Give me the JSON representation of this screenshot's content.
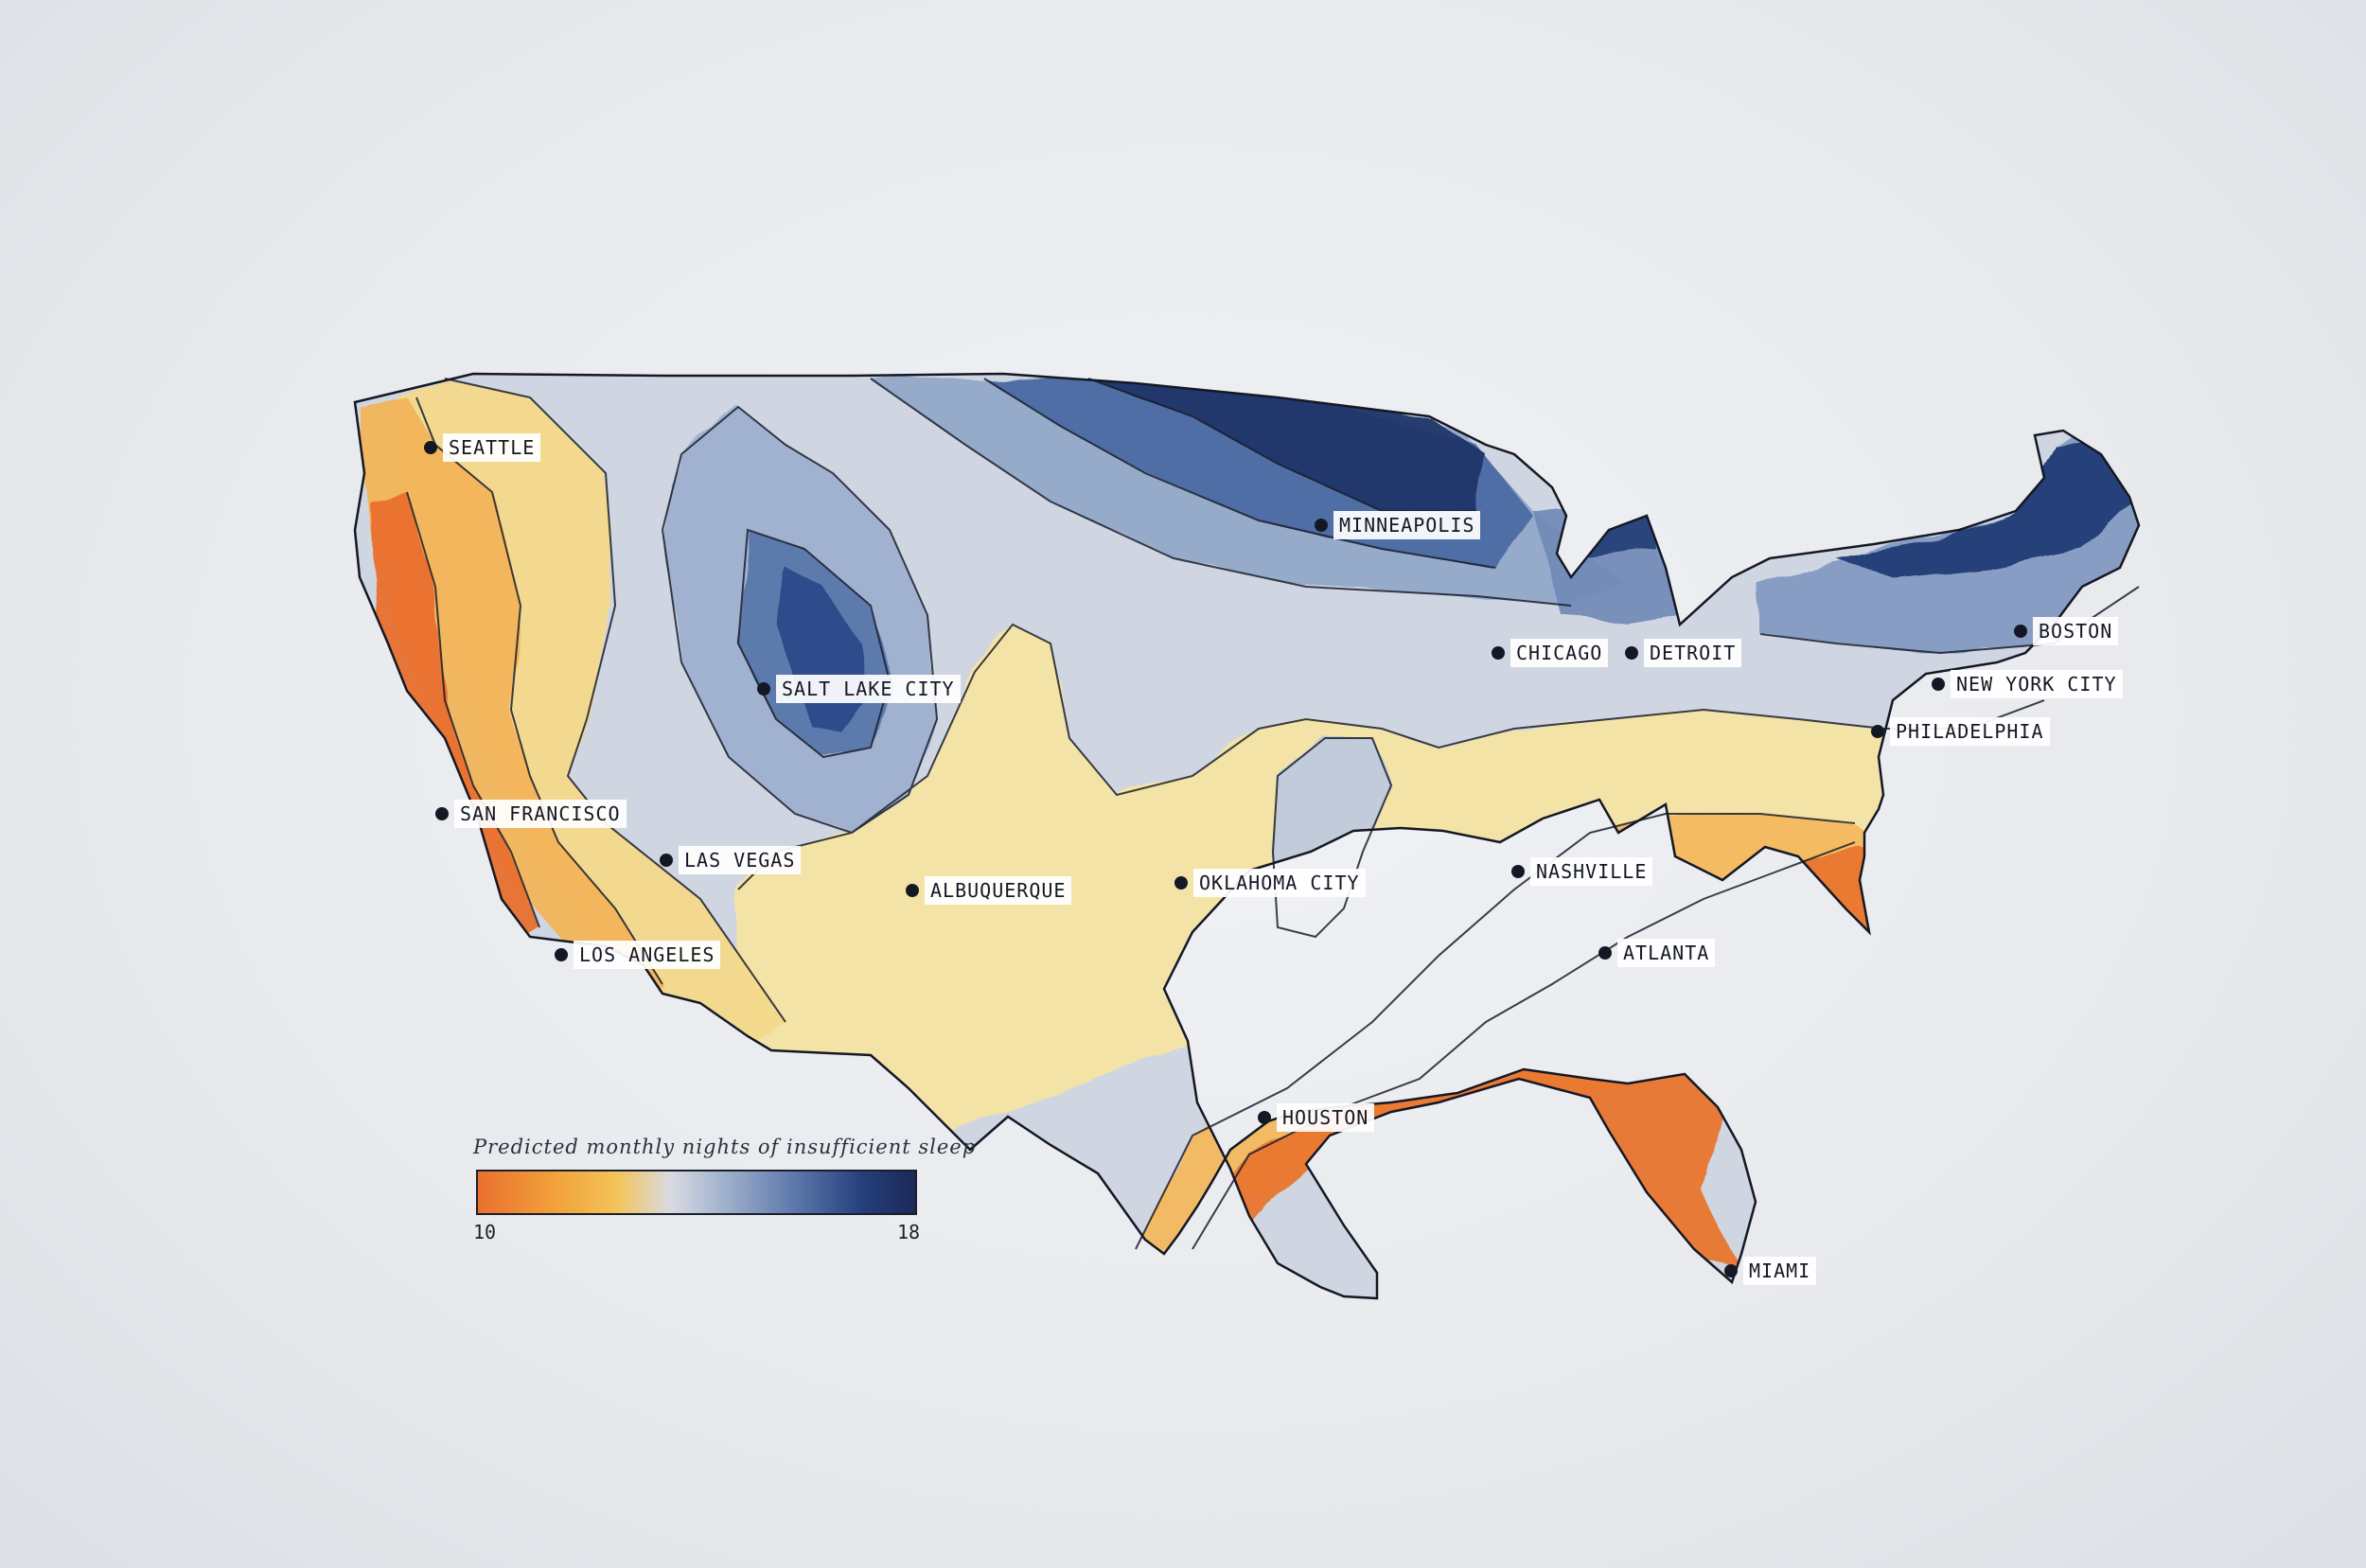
{
  "legend": {
    "title": "Predicted monthly nights of insufficient sleep",
    "min_label": "10",
    "max_label": "18",
    "range": [
      10,
      18
    ],
    "colors": [
      "#e9702e",
      "#f2a23b",
      "#f3c45a",
      "#d9dbe2",
      "#a6b6cf",
      "#5e79ab",
      "#243f7c",
      "#1b2a57"
    ]
  },
  "cities": [
    {
      "name": "SEATTLE"
    },
    {
      "name": "MINNEAPOLIS"
    },
    {
      "name": "BOSTON"
    },
    {
      "name": "CHICAGO"
    },
    {
      "name": "DETROIT"
    },
    {
      "name": "SALT LAKE CITY"
    },
    {
      "name": "NEW YORK CITY"
    },
    {
      "name": "PHILADELPHIA"
    },
    {
      "name": "SAN FRANCISCO"
    },
    {
      "name": "LAS VEGAS"
    },
    {
      "name": "ALBUQUERQUE"
    },
    {
      "name": "OKLAHOMA CITY"
    },
    {
      "name": "NASHVILLE"
    },
    {
      "name": "LOS ANGELES"
    },
    {
      "name": "ATLANTA"
    },
    {
      "name": "HOUSTON"
    },
    {
      "name": "MIAMI"
    }
  ]
}
